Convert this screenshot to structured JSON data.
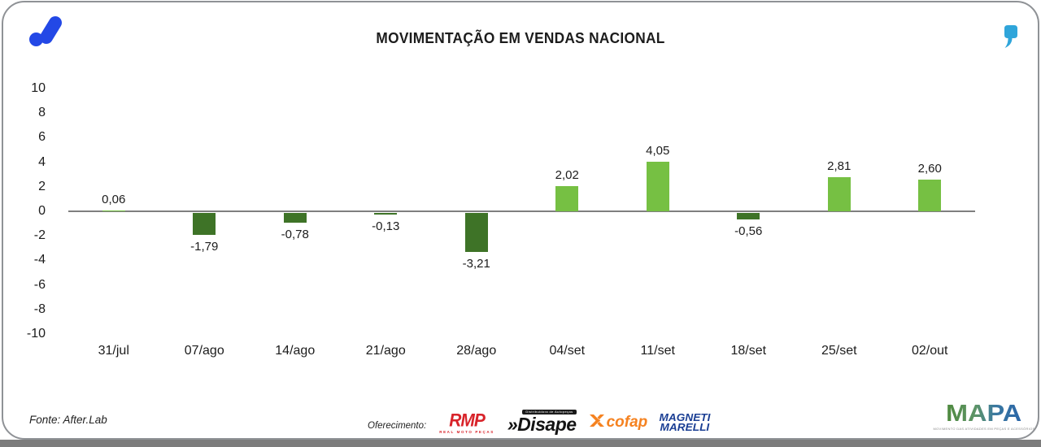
{
  "header": {
    "title": "MOVIMENTAÇÃO EM VENDAS NACIONAL"
  },
  "chart_data": {
    "type": "bar",
    "title": "MOVIMENTAÇÃO EM VENDAS NACIONAL",
    "categories": [
      "31/jul",
      "07/ago",
      "14/ago",
      "21/ago",
      "28/ago",
      "04/set",
      "11/set",
      "18/set",
      "25/set",
      "02/out"
    ],
    "values": [
      0.06,
      -1.79,
      -0.78,
      -0.13,
      -3.21,
      2.02,
      4.05,
      -0.56,
      2.81,
      2.6
    ],
    "value_labels": [
      "0,06",
      "-1,79",
      "-0,78",
      "-0,13",
      "-3,21",
      "2,02",
      "4,05",
      "-0,56",
      "2,81",
      "2,60"
    ],
    "ylim": [
      -10,
      10
    ],
    "yticks": [
      10,
      8,
      6,
      4,
      2,
      0,
      -2,
      -4,
      -6,
      -8,
      -10
    ],
    "xlabel": "",
    "ylabel": "",
    "grid": false,
    "legend": false,
    "colors": {
      "positive_bar": "#76c043",
      "negative_bar": "#3e7327",
      "zero_line": "#7f7f7f",
      "brand_blue": "#2348e6",
      "quote_cyan": "#2fa5da"
    }
  },
  "footer": {
    "source": "Fonte: After.Lab",
    "sponsor_label": "Oferecimento:",
    "sponsors": {
      "rmp": {
        "name": "RMP",
        "subtext": "REAL MOTO PEÇAS",
        "color": "#d8232a"
      },
      "disape": {
        "prefix": "»",
        "name": "Disape",
        "tag": "Distribuidora de Autopeças",
        "color": "#141414"
      },
      "cofap": {
        "name": "cofap",
        "color": "#f58220"
      },
      "magneti": {
        "line1": "MAGNETI",
        "line2": "MARELLI",
        "color": "#1b3f94"
      }
    },
    "mapa": {
      "name": "MAPA",
      "tagline": "MOVIMENTO DAS ATIVIDADES EM PEÇAS E ACESSÓRIOS"
    }
  }
}
